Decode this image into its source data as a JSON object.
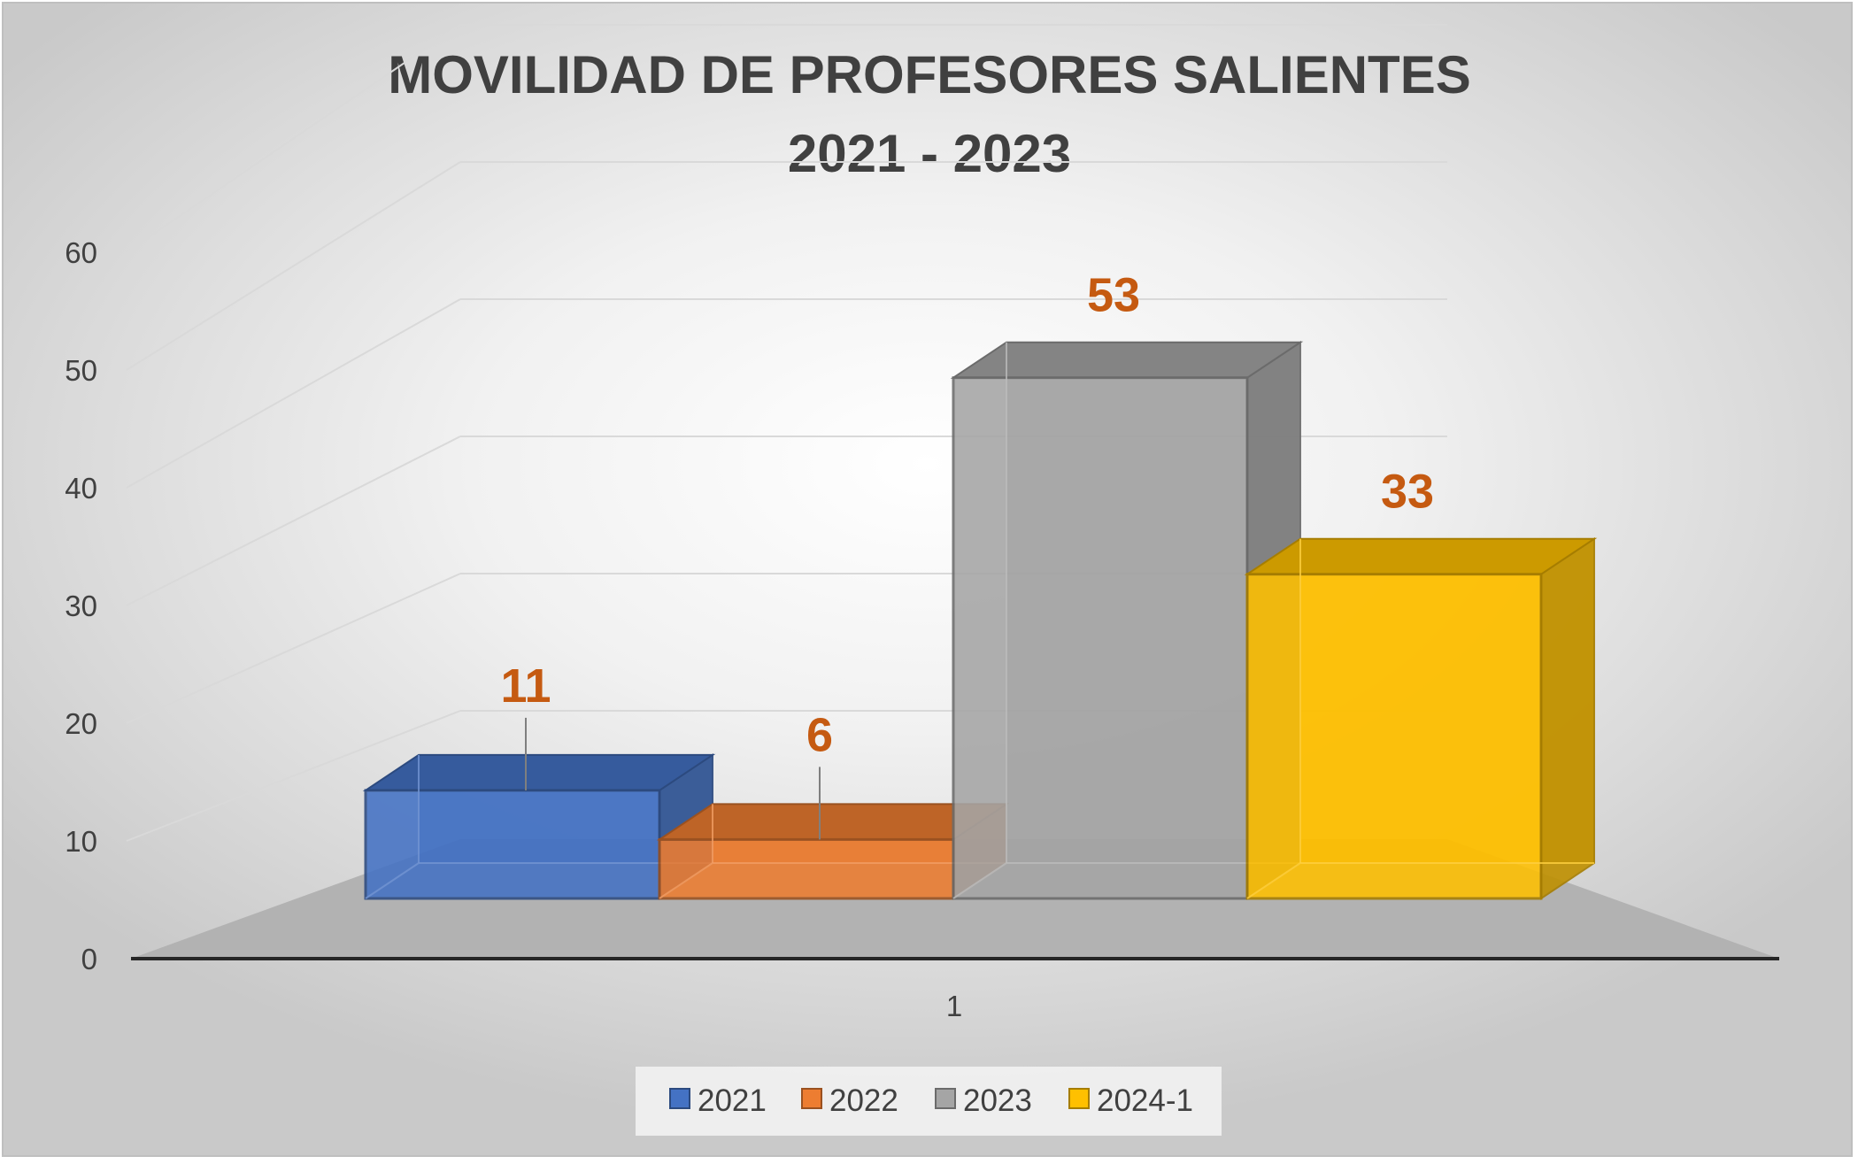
{
  "chart_data": {
    "type": "bar",
    "variant": "3d-clustered-column",
    "title_lines": [
      "MOVILIDAD DE PROFESORES SALIENTES",
      "2021 - 2023"
    ],
    "categories": [
      "1"
    ],
    "series": [
      {
        "name": "2021",
        "values": [
          11
        ],
        "color": "#4472c4"
      },
      {
        "name": "2022",
        "values": [
          6
        ],
        "color": "#ed7d31"
      },
      {
        "name": "2023",
        "values": [
          53
        ],
        "color": "#a5a5a5"
      },
      {
        "name": "2024-1",
        "values": [
          33
        ],
        "color": "#ffc000"
      }
    ],
    "data_labels": [
      "11",
      "6",
      "53",
      "33"
    ],
    "data_label_color": "#c55a11",
    "ylim": [
      0,
      60
    ],
    "y_ticks": [
      "0",
      "10",
      "20",
      "30",
      "40",
      "50",
      "60"
    ],
    "grid": true,
    "legend_position": "bottom"
  }
}
